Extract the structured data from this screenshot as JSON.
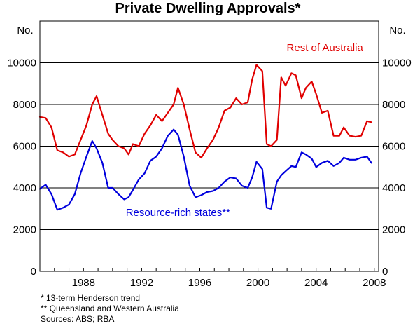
{
  "chart_data": {
    "type": "line",
    "title": "Private Dwelling Approvals*",
    "ylabel_left": "No.",
    "ylabel_right": "No.",
    "xlabel": "",
    "ylim": [
      0,
      12000
    ],
    "yticks": [
      0,
      2000,
      4000,
      6000,
      8000,
      10000
    ],
    "xlim": [
      1985.0,
      2008.3
    ],
    "xticks": [
      1988,
      1992,
      1996,
      2000,
      2004,
      2008
    ],
    "grid": true,
    "series": [
      {
        "name": "Rest of Australia",
        "color": "#e00000",
        "x": [
          1985.0,
          1985.4,
          1985.8,
          1986.2,
          1986.6,
          1987.0,
          1987.4,
          1987.8,
          1988.2,
          1988.6,
          1988.9,
          1989.3,
          1989.7,
          1990.0,
          1990.4,
          1990.8,
          1991.1,
          1991.4,
          1991.8,
          1992.2,
          1992.6,
          1993.0,
          1993.4,
          1993.8,
          1994.2,
          1994.5,
          1994.9,
          1995.3,
          1995.7,
          1996.1,
          1996.5,
          1996.9,
          1997.3,
          1997.7,
          1998.1,
          1998.5,
          1998.9,
          1999.3,
          1999.6,
          1999.9,
          2000.3,
          2000.6,
          2000.9,
          2001.3,
          2001.6,
          2001.9,
          2002.3,
          2002.6,
          2003.0,
          2003.3,
          2003.7,
          2004.0,
          2004.4,
          2004.8,
          2005.2,
          2005.6,
          2005.9,
          2006.3,
          2006.7,
          2007.1,
          2007.5,
          2007.8
        ],
        "values": [
          7400,
          7350,
          6900,
          5800,
          5700,
          5500,
          5600,
          6300,
          7000,
          8000,
          8400,
          7500,
          6600,
          6300,
          6000,
          5900,
          5600,
          6100,
          6000,
          6600,
          7000,
          7500,
          7200,
          7600,
          8000,
          8800,
          8000,
          6800,
          5700,
          5450,
          5900,
          6300,
          6900,
          7700,
          7850,
          8300,
          8000,
          8100,
          9200,
          9900,
          9600,
          6100,
          6000,
          6300,
          9300,
          8900,
          9500,
          9400,
          8300,
          8800,
          9100,
          8500,
          7600,
          7700,
          6500,
          6500,
          6900,
          6500,
          6450,
          6500,
          7200,
          7150
        ]
      },
      {
        "name": "Resource-rich states**",
        "color": "#0000dd",
        "x": [
          1985.0,
          1985.4,
          1985.8,
          1986.2,
          1986.6,
          1987.0,
          1987.4,
          1987.8,
          1988.2,
          1988.6,
          1988.9,
          1989.3,
          1989.7,
          1990.0,
          1990.4,
          1990.8,
          1991.1,
          1991.4,
          1991.8,
          1992.2,
          1992.6,
          1993.0,
          1993.4,
          1993.8,
          1994.2,
          1994.5,
          1994.9,
          1995.3,
          1995.7,
          1996.1,
          1996.5,
          1996.9,
          1997.3,
          1997.7,
          1998.1,
          1998.5,
          1998.9,
          1999.3,
          1999.6,
          1999.9,
          2000.3,
          2000.6,
          2000.9,
          2001.3,
          2001.6,
          2001.9,
          2002.3,
          2002.6,
          2003.0,
          2003.3,
          2003.7,
          2004.0,
          2004.4,
          2004.8,
          2005.2,
          2005.6,
          2005.9,
          2006.3,
          2006.7,
          2007.1,
          2007.5,
          2007.8
        ],
        "values": [
          3950,
          4150,
          3700,
          2950,
          3050,
          3200,
          3700,
          4700,
          5500,
          6250,
          5900,
          5200,
          4000,
          4000,
          3700,
          3450,
          3550,
          3900,
          4400,
          4700,
          5300,
          5500,
          5900,
          6500,
          6800,
          6550,
          5500,
          4100,
          3550,
          3650,
          3800,
          3850,
          4000,
          4300,
          4500,
          4450,
          4100,
          4000,
          4500,
          5250,
          4900,
          3050,
          3000,
          4300,
          4600,
          4800,
          5050,
          5000,
          5700,
          5600,
          5400,
          5000,
          5200,
          5300,
          5050,
          5200,
          5450,
          5350,
          5350,
          5450,
          5500,
          5200
        ]
      }
    ],
    "annotations": [
      {
        "text": "Rest of Australia",
        "x": 2004.6,
        "y": 10550,
        "color": "#e00000"
      },
      {
        "text": "Resource-rich states**",
        "x": 1994.5,
        "y": 2650,
        "color": "#0000dd"
      }
    ]
  },
  "footnotes": {
    "note1": "*   13-term Henderson trend",
    "note2": "** Queensland and Western Australia",
    "sources": "Sources: ABS; RBA"
  }
}
